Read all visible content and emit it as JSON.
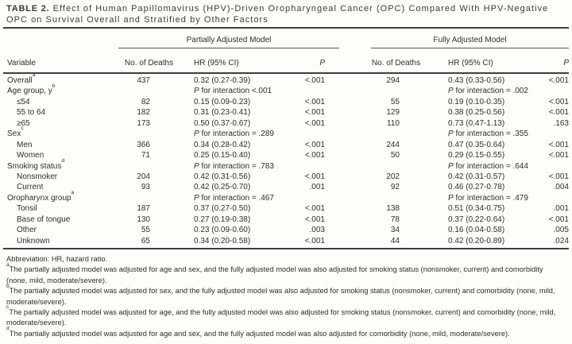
{
  "title": {
    "prefix": "TABLE 2.",
    "text": " Effect of Human Papillomavirus (HPV)-Driven Oropharyngeal Cancer (OPC) Compared With HPV-Negative OPC on Survival Overall and Stratified by Other Factors"
  },
  "table": {
    "model_headers": [
      "Partially Adjusted Model",
      "Fully Adjusted Model"
    ],
    "col_headers": {
      "variable": "Variable",
      "deaths": "No. of Deaths",
      "hr": "HR (95% CI)",
      "p": "P"
    },
    "rows": [
      {
        "label": "Overall",
        "sup": "a",
        "indent": false,
        "d1": "437",
        "hr1": "0.32 (0.27-0.39)",
        "p1": "<.001",
        "d2": "294",
        "hr2": "0.43 (0.33-0.56)",
        "p2": "<.001"
      },
      {
        "label": "Age group, y",
        "sup": "b",
        "indent": false,
        "hr1": "P for interaction <.001",
        "hr2": "P for interaction = .002"
      },
      {
        "label": "≤54",
        "indent": true,
        "d1": "82",
        "hr1": "0.15 (0.09-0.23)",
        "p1": "<.001",
        "d2": "55",
        "hr2": "0.19 (0.10-0.35)",
        "p2": "<.001"
      },
      {
        "label": "55 to 64",
        "indent": true,
        "d1": "182",
        "hr1": "0.31 (0.23-0.41)",
        "p1": "<.001",
        "d2": "129",
        "hr2": "0.38 (0.25-0.56)",
        "p2": "<.001"
      },
      {
        "label": "≥65",
        "indent": true,
        "d1": "173",
        "hr1": "0.50 (0.37-0.67)",
        "p1": "<.001",
        "d2": "110",
        "hr2": "0.73 (0.47-1.13)",
        "p2": ".163"
      },
      {
        "label": "Sex",
        "sup": "c",
        "indent": false,
        "hr1": "P for interaction = .289",
        "hr2": "P for interaction = .355"
      },
      {
        "label": "Men",
        "indent": true,
        "d1": "366",
        "hr1": "0.34 (0.28-0.42)",
        "p1": "<.001",
        "d2": "244",
        "hr2": "0.47 (0.35-0.64)",
        "p2": "<.001"
      },
      {
        "label": "Women",
        "indent": true,
        "d1": "71",
        "hr1": "0.25 (0.15-0.40)",
        "p1": "<.001",
        "d2": "50",
        "hr2": "0.29 (0.15-0.55)",
        "p2": "<.001"
      },
      {
        "label": "Smoking status",
        "sup": "d",
        "indent": false,
        "hr1": "P for interaction = .783",
        "hr2": "P for interaction = .644"
      },
      {
        "label": "Nonsmoker",
        "indent": true,
        "d1": "204",
        "hr1": "0.42 (0.31-0.56)",
        "p1": "<.001",
        "d2": "202",
        "hr2": "0.42 (0.31-0.57)",
        "p2": "<.001"
      },
      {
        "label": "Current",
        "indent": true,
        "d1": "93",
        "hr1": "0.42 (0.25-0.70)",
        "p1": ".001",
        "d2": "92",
        "hr2": "0.46 (0.27-0.78)",
        "p2": ".004"
      },
      {
        "label": "Oropharynx group",
        "sup": "a",
        "indent": false,
        "hr1": "P for interaction = .467",
        "hr2": "P for interaction = .479"
      },
      {
        "label": "Tonsil",
        "indent": true,
        "d1": "187",
        "hr1": "0.37 (0.27-0.50)",
        "p1": "<.001",
        "d2": "138",
        "hr2": "0.51 (0.34-0.75)",
        "p2": ".001"
      },
      {
        "label": "Base of tongue",
        "indent": true,
        "d1": "130",
        "hr1": "0.27 (0.19-0.38)",
        "p1": "<.001",
        "d2": "78",
        "hr2": "0.37 (0.22-0.64)",
        "p2": "<.001"
      },
      {
        "label": "Other",
        "indent": true,
        "d1": "55",
        "hr1": "0.23 (0.09-0.60)",
        "p1": ".003",
        "d2": "34",
        "hr2": "0.16 (0.04-0.58)",
        "p2": ".005"
      },
      {
        "label": "Unknown",
        "indent": true,
        "d1": "65",
        "hr1": "0.34 (0.20-0.58)",
        "p1": "<.001",
        "d2": "44",
        "hr2": "0.42 (0.20-0.89)",
        "p2": ".024"
      }
    ]
  },
  "footnotes": {
    "abbreviation": "Abbreviation: HR, hazard ratio.",
    "items": [
      {
        "sup": "a",
        "text": "The partially adjusted model was adjusted for age and sex, and the fully adjusted model was also adjusted for smoking status (nonsmoker, current) and comorbidity (none, mild, moderate/severe)."
      },
      {
        "sup": "b",
        "text": "The partially adjusted model was adjusted for sex, and the fully adjusted model was also adjusted for smoking status (nonsmoker, current) and comorbidity (none, mild, moderate/severe)."
      },
      {
        "sup": "c",
        "text": "The partially adjusted model was adjusted for age, and the fully adjusted model was also adjusted for smoking status (nonsmoker, current) and comorbidity (none, mild, moderate/severe)."
      },
      {
        "sup": "d",
        "text": "The partially adjusted model was adjusted for age and sex, and the fully adjusted model was also adjusted for comorbidity (none, mild, moderate/severe)."
      }
    ]
  },
  "colors": {
    "background": "#fdfdfc",
    "text": "#2d2d2d",
    "title_text": "#3b3b3b",
    "rule_thick": "#3e3e3e",
    "rule_thin": "#555555"
  }
}
